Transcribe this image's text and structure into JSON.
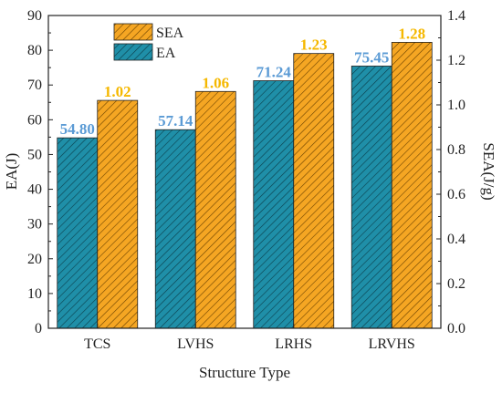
{
  "chart_data": {
    "type": "bar",
    "categories": [
      "TCS",
      "LVHS",
      "LRHS",
      "LRVHS"
    ],
    "series": [
      {
        "name": "EA",
        "axis": "left",
        "values": [
          54.8,
          57.14,
          71.24,
          75.45
        ],
        "labels": [
          "54.80",
          "57.14",
          "71.24",
          "75.45"
        ],
        "color": "#1f8fa8",
        "label_color": "#5b9bd5"
      },
      {
        "name": "SEA",
        "axis": "right",
        "values": [
          1.02,
          1.06,
          1.23,
          1.28
        ],
        "labels": [
          "1.02",
          "1.06",
          "1.23",
          "1.28"
        ],
        "color": "#f5a623",
        "label_color": "#f5b800"
      }
    ],
    "xlabel": "Structure Type",
    "ylabel": "EA(J)",
    "y2label": "SEA(J/g)",
    "ylim": [
      0,
      90
    ],
    "y2lim": [
      0,
      1.4
    ],
    "yticks": [
      "0",
      "10",
      "20",
      "30",
      "40",
      "50",
      "60",
      "70",
      "80",
      "90"
    ],
    "y2ticks": [
      "0.0",
      "0.2",
      "0.4",
      "0.6",
      "0.8",
      "1.0",
      "1.2",
      "1.4"
    ],
    "legend": [
      "SEA",
      "EA"
    ],
    "legend_position": "top-left",
    "grid": false,
    "bar_pattern": "diagonal-hatch"
  }
}
